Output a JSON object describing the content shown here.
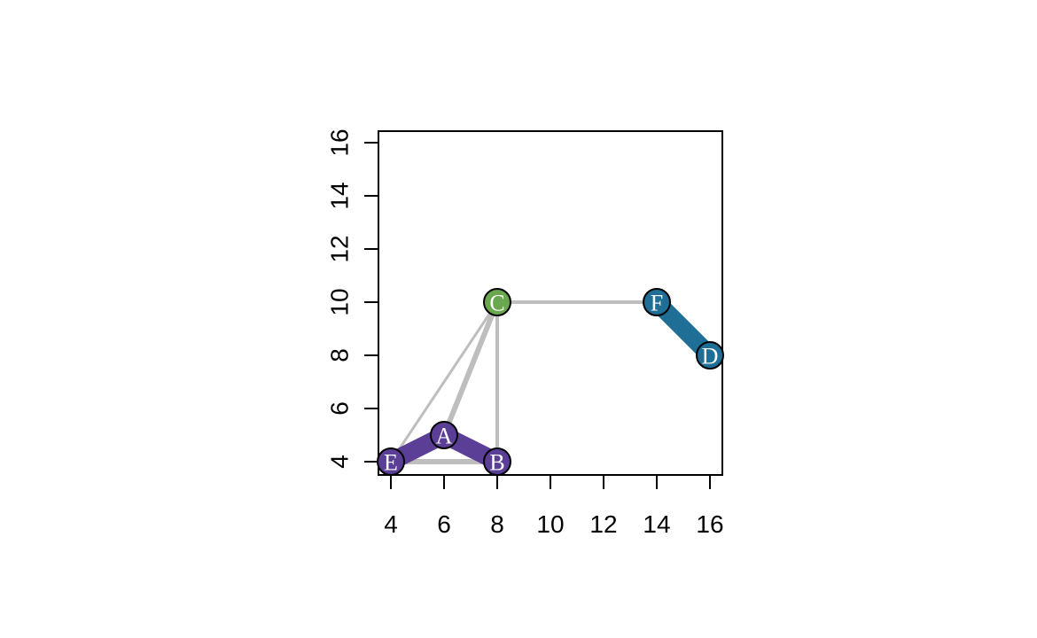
{
  "graph": {
    "nodes": [
      {
        "id": "A",
        "label": "A",
        "x": 6,
        "y": 5,
        "color": "#5b3f96"
      },
      {
        "id": "B",
        "label": "B",
        "x": 8,
        "y": 4,
        "color": "#5b3f96"
      },
      {
        "id": "C",
        "label": "C",
        "x": 8,
        "y": 10,
        "color": "#6aa84f"
      },
      {
        "id": "D",
        "label": "D",
        "x": 16,
        "y": 8,
        "color": "#1f6e96"
      },
      {
        "id": "E",
        "label": "E",
        "x": 4,
        "y": 4,
        "color": "#5b3f96"
      },
      {
        "id": "F",
        "label": "F",
        "x": 14,
        "y": 10,
        "color": "#1f6e96"
      }
    ],
    "edges": [
      {
        "from": "E",
        "to": "C",
        "color": "#bebebe",
        "weight": "thin"
      },
      {
        "from": "A",
        "to": "C",
        "color": "#bebebe",
        "weight": "thick"
      },
      {
        "from": "B",
        "to": "C",
        "color": "#bebebe",
        "weight": "medium"
      },
      {
        "from": "E",
        "to": "B",
        "color": "#bebebe",
        "weight": "thick"
      },
      {
        "from": "C",
        "to": "F",
        "color": "#bebebe",
        "weight": "medium"
      },
      {
        "from": "E",
        "to": "A",
        "color": "#5b3f96",
        "weight": "heavy"
      },
      {
        "from": "A",
        "to": "B",
        "color": "#5b3f96",
        "weight": "heavy"
      },
      {
        "from": "F",
        "to": "D",
        "color": "#1f6e96",
        "weight": "heavy"
      }
    ]
  },
  "axes": {
    "x_ticks": [
      "4",
      "6",
      "8",
      "10",
      "12",
      "14",
      "16"
    ],
    "y_ticks": [
      "4",
      "6",
      "8",
      "10",
      "12",
      "14",
      "16"
    ],
    "xlim": [
      3.6,
      16.5
    ],
    "ylim": [
      3.55,
      16.5
    ]
  }
}
